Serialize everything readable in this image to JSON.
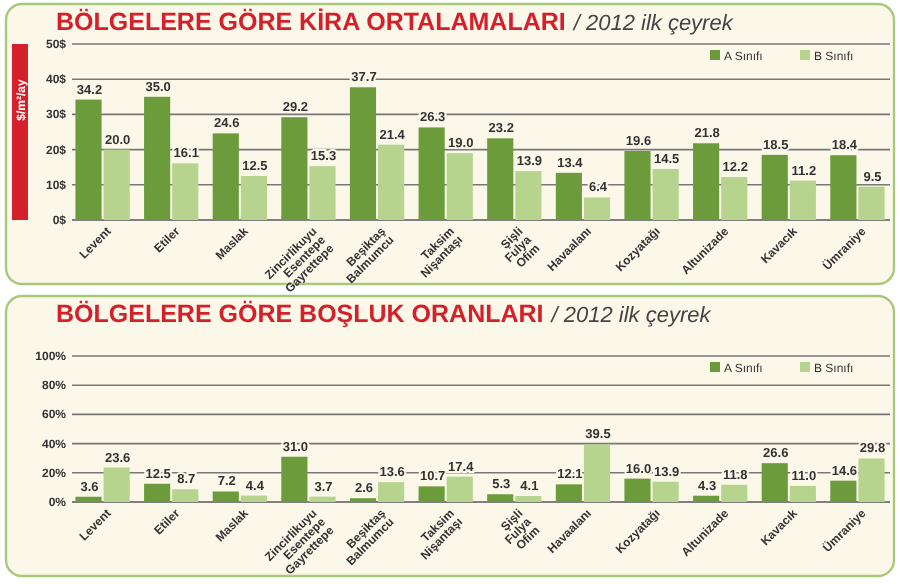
{
  "chart_data": [
    {
      "type": "bar",
      "title": "BÖLGELERE GÖRE KİRA ORTALAMALARI",
      "subtitle": "/ 2012 ilk çeyrek",
      "ylabel": "$/m²/ay",
      "categories": [
        "Levent",
        "Etiler",
        "Maslak",
        "Zincirlikuyu Esentepe Gayrettepe",
        "Beşiktaş Balmumcu",
        "Taksim Nişantaşı",
        "Şişli Fulya Ofim",
        "Havaalanı",
        "Kozyatağı",
        "Altunizade",
        "Kavacık",
        "Ümraniye"
      ],
      "series": [
        {
          "name": "A Sınıfı",
          "color": "#6b9b3a",
          "values": [
            34.2,
            35.0,
            24.6,
            29.2,
            37.7,
            26.3,
            23.2,
            13.4,
            19.6,
            21.8,
            18.5,
            18.4
          ],
          "value_labels": [
            "34.2",
            "35.0",
            "24.6",
            "29.2",
            "37.7",
            "26.3",
            "23.2",
            "13.4",
            "19.6",
            "21.8",
            "18.5",
            "18.4"
          ]
        },
        {
          "name": "B Sınıfı",
          "color": "#b7d48f",
          "values": [
            20.0,
            16.1,
            12.5,
            15.3,
            21.4,
            19.0,
            13.9,
            6.4,
            14.5,
            12.2,
            11.2,
            9.5
          ],
          "value_labels": [
            "20.0",
            "16.1",
            "12.5",
            "15.3",
            "21.4",
            "19.0",
            "13.9",
            "6.4",
            "14.5",
            "12.2",
            "11.2",
            "9.5"
          ]
        }
      ],
      "ylim": [
        0,
        50
      ],
      "yticks": [
        {
          "value": 0,
          "label": "0$"
        },
        {
          "value": 10,
          "label": "10$"
        },
        {
          "value": 20,
          "label": "20$"
        },
        {
          "value": 30,
          "label": "30$"
        },
        {
          "value": 40,
          "label": "40$"
        },
        {
          "value": 50,
          "label": "50$"
        }
      ],
      "grid": "y",
      "legend": "top right"
    },
    {
      "type": "bar",
      "title": "BÖLGELERE GÖRE BOŞLUK ORANLARI",
      "subtitle": "/ 2012 ilk çeyrek",
      "categories": [
        "Levent",
        "Etiler",
        "Maslak",
        "Zincirlikuyu Esentepe Gayrettepe",
        "Beşiktaş Balmumcu",
        "Taksim Nişantaşı",
        "Şişli Fulya Ofim",
        "Havaalanı",
        "Kozyatağı",
        "Altunizade",
        "Kavacık",
        "Ümraniye"
      ],
      "series": [
        {
          "name": "A Sınıfı",
          "color": "#6b9b3a",
          "values": [
            3.6,
            12.5,
            7.2,
            31.0,
            2.6,
            10.7,
            5.3,
            12.1,
            16.0,
            4.3,
            26.6,
            14.6
          ],
          "value_labels": [
            "3.6",
            "12.5",
            "7.2",
            "31.0",
            "2.6",
            "10.7",
            "5.3",
            "12.1",
            "16.0",
            "4.3",
            "26.6",
            "14.6"
          ]
        },
        {
          "name": "B Sınıfı",
          "color": "#b7d48f",
          "values": [
            23.6,
            8.7,
            4.4,
            3.7,
            13.6,
            17.4,
            4.1,
            39.5,
            13.9,
            11.8,
            11.0,
            29.8
          ],
          "value_labels": [
            "23.6",
            "8.7",
            "4.4",
            "3.7",
            "13.6",
            "17.4",
            "4.1",
            "39.5",
            "13.9",
            "11.8",
            "11.0",
            "29.8"
          ]
        }
      ],
      "ylim": [
        0,
        100
      ],
      "yticks": [
        {
          "value": 0,
          "label": "0%"
        },
        {
          "value": 20,
          "label": "20%"
        },
        {
          "value": 40,
          "label": "40%"
        },
        {
          "value": 60,
          "label": "60%"
        },
        {
          "value": 80,
          "label": "80%"
        },
        {
          "value": 100,
          "label": "100%"
        }
      ],
      "grid": "y",
      "legend": "top right"
    }
  ]
}
